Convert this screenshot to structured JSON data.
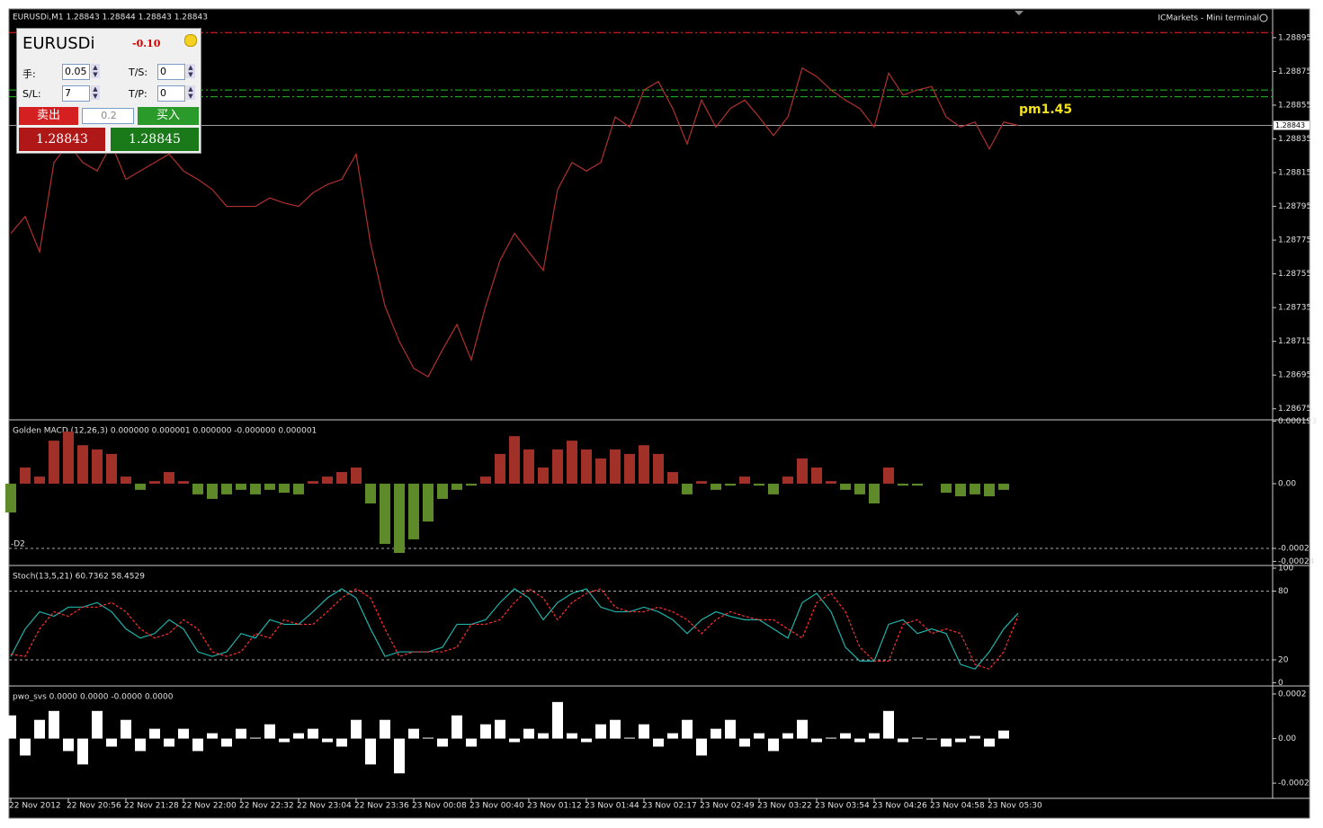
{
  "window": {
    "terminal_label": "ICMarkets - Mini terminal"
  },
  "mini_terminal": {
    "symbol": "EURUSDi",
    "profit": "-0.10",
    "lot_label": "手:",
    "lot": "0.05",
    "ts_label": "T/S:",
    "ts": "0",
    "sl_label": "S/L:",
    "sl": "7",
    "tp_label": "T/P:",
    "tp": "0",
    "sell_label": "卖出",
    "volume": "0.2",
    "buy_label": "买入",
    "bid": "1.28843",
    "ask": "1.28845"
  },
  "chart_data": [
    {
      "type": "line",
      "title": "EURUSDi,M1  1.28843 1.28844 1.28843 1.28843",
      "color": "#b03030",
      "categories": [
        "22 Nov 2012",
        null,
        null,
        null,
        "22 Nov 20:56",
        null,
        null,
        null,
        "22 Nov 21:28",
        null,
        null,
        null,
        "22 Nov 22:00",
        null,
        null,
        null,
        "22 Nov 22:32",
        null,
        null,
        null,
        "22 Nov 23:04",
        null,
        null,
        null,
        "22 Nov 23:36",
        null,
        null,
        null,
        "23 Nov 00:08",
        null,
        null,
        null,
        "23 Nov 00:40",
        null,
        null,
        null,
        "23 Nov 01:12",
        null,
        null,
        null,
        "23 Nov 01:44",
        null,
        null,
        null,
        "23 Nov 02:17",
        null,
        null,
        null,
        "23 Nov 02:49",
        null,
        null,
        null,
        "23 Nov 03:22",
        null,
        null,
        null,
        "23 Nov 03:54",
        null,
        null,
        null,
        "23 Nov 04:26",
        null,
        null,
        null,
        "23 Nov 04:58",
        null,
        null,
        null,
        "23 Nov 05:30",
        null,
        null
      ],
      "values": [
        1.28779,
        1.28789,
        1.28768,
        1.28821,
        1.28832,
        1.28821,
        1.28816,
        1.28832,
        1.28811,
        1.28816,
        1.28821,
        1.28826,
        1.28816,
        1.28811,
        1.28805,
        1.28795,
        1.28795,
        1.28795,
        1.288,
        1.28797,
        1.28795,
        1.28803,
        1.28808,
        1.28811,
        1.28826,
        1.28773,
        1.28736,
        1.28715,
        1.28699,
        1.28694,
        1.2871,
        1.28725,
        1.28704,
        1.28736,
        1.28763,
        1.28779,
        1.28768,
        1.28757,
        1.28805,
        1.28821,
        1.28816,
        1.28821,
        1.28848,
        1.28842,
        1.28864,
        1.28869,
        1.28853,
        1.28832,
        1.28858,
        1.28842,
        1.28853,
        1.28858,
        1.28848,
        1.28837,
        1.28848,
        1.28877,
        1.28872,
        1.28864,
        1.28858,
        1.28853,
        1.28842,
        1.28874,
        1.28861,
        1.28864,
        1.28866,
        1.28848,
        1.28842,
        1.28845,
        1.28829,
        1.28845,
        1.28843
      ],
      "ylim": [
        1.28669,
        1.28912
      ],
      "yticks": [
        1.28895,
        1.28875,
        1.28855,
        1.28835,
        1.28815,
        1.28795,
        1.28775,
        1.28755,
        1.28735,
        1.28715,
        1.28695,
        1.28675
      ],
      "hlines": [
        {
          "value": 1.28898,
          "color": "#ff2020"
        },
        {
          "value": 1.28864,
          "color": "#20c020"
        },
        {
          "value": 1.2886,
          "color": "#20c020"
        }
      ],
      "bid_line": 1.28843,
      "annotation": "pm1.45"
    },
    {
      "type": "bar",
      "title": "Golden MACD (12,26,3) 0.000000 0.000001 0.000000 -0.000000 0.000001",
      "color_up": "#a03028",
      "color_down": "#5f8a2a",
      "side_label": "-D2",
      "values": [
        -8.9e-05,
        5e-05,
        2.2e-05,
        0.000133,
        0.000161,
        0.000119,
        0.000106,
        9.2e-05,
        2.2e-05,
        -1.9e-05,
        8e-06,
        3.6e-05,
        8e-06,
        -3.3e-05,
        -4.7e-05,
        -3.3e-05,
        -1.9e-05,
        -3.3e-05,
        -1.9e-05,
        -2.8e-05,
        -3.3e-05,
        8e-06,
        2.2e-05,
        3.6e-05,
        5e-05,
        -6.1e-05,
        -0.000186,
        -0.000214,
        -0.000172,
        -0.000117,
        -4.7e-05,
        -1.9e-05,
        -6e-06,
        2.2e-05,
        9.2e-05,
        0.000147,
        0.000106,
        5e-05,
        0.000106,
        0.000133,
        0.000106,
        7.8e-05,
        0.000106,
        9.2e-05,
        0.000119,
        9.2e-05,
        3.6e-05,
        -3.3e-05,
        8e-06,
        -1.9e-05,
        -6e-06,
        2.2e-05,
        -6e-06,
        -3.3e-05,
        2.2e-05,
        7.8e-05,
        5e-05,
        8e-06,
        -1.9e-05,
        -3.3e-05,
        -6.1e-05,
        5e-05,
        -6e-06,
        -6e-06,
        0,
        -2.8e-05,
        -3.9e-05,
        -3.3e-05,
        -3.9e-05,
        -1.9e-05,
        0
      ],
      "ylim": [
        -0.00025,
        0.000189
      ],
      "yticks": [
        0.000193,
        {
          "value": 0,
          "label": "0.00"
        },
        -0.0002,
        -0.00024
      ],
      "levels": [
        -0.0002
      ]
    },
    {
      "type": "line",
      "title": "Stoch(13,5,21) 60.7362 58.4529",
      "series": [
        {
          "color": "#20b2aa",
          "dashed": false,
          "values": [
            23,
            47,
            62,
            58,
            66,
            66,
            70,
            62,
            47,
            39,
            43,
            55,
            47,
            27,
            23,
            27,
            43,
            39,
            55,
            51,
            51,
            62,
            74,
            82,
            74,
            47,
            23,
            27,
            27,
            27,
            31,
            51,
            51,
            55,
            70,
            82,
            74,
            55,
            70,
            78,
            82,
            66,
            62,
            62,
            66,
            62,
            55,
            43,
            55,
            62,
            58,
            55,
            55,
            47,
            39,
            70,
            78,
            62,
            31,
            19,
            19,
            51,
            55,
            43,
            47,
            43,
            16,
            12,
            27,
            47,
            60.7362
          ]
        },
        {
          "color": "#ff3030",
          "dashed": true,
          "values": [
            25,
            23,
            47,
            62,
            58,
            66,
            66,
            70,
            62,
            47,
            39,
            43,
            55,
            47,
            27,
            23,
            27,
            43,
            39,
            55,
            51,
            51,
            62,
            74,
            82,
            74,
            47,
            23,
            27,
            27,
            27,
            31,
            51,
            51,
            55,
            70,
            82,
            74,
            55,
            70,
            78,
            82,
            66,
            62,
            62,
            66,
            62,
            55,
            43,
            55,
            62,
            58,
            55,
            55,
            47,
            39,
            70,
            78,
            62,
            31,
            19,
            19,
            51,
            55,
            43,
            47,
            43,
            16,
            12,
            27,
            58.4529
          ]
        }
      ],
      "ylim": [
        -2,
        100
      ],
      "yticks": [
        100,
        80,
        20,
        0
      ],
      "levels": [
        80,
        20
      ]
    },
    {
      "type": "bar",
      "title": "pwo_svs 0.0000 0.0000 -0.0000 0.0000",
      "color_up": "#ffffff",
      "color_down": "#ffffff",
      "values": [
        0.000104,
        -7.6e-05,
        8.4e-05,
        0.000124,
        -5.6e-05,
        -0.000116,
        0.000124,
        -3.6e-05,
        8.4e-05,
        -5.6e-05,
        4.4e-05,
        -3.6e-05,
        4.4e-05,
        -5.6e-05,
        2.4e-05,
        -3.6e-05,
        4.4e-05,
        4e-06,
        6.4e-05,
        -1.6e-05,
        2.4e-05,
        4.4e-05,
        -1.6e-05,
        -3.6e-05,
        8.4e-05,
        -0.000116,
        8.4e-05,
        -0.000156,
        4.4e-05,
        4e-06,
        -3.6e-05,
        0.000104,
        -3.6e-05,
        6.4e-05,
        8.4e-05,
        -1.6e-05,
        4.4e-05,
        2.4e-05,
        0.000164,
        2.4e-05,
        -1.6e-05,
        6.4e-05,
        8.4e-05,
        4e-06,
        6.4e-05,
        -3.6e-05,
        2.4e-05,
        8.4e-05,
        -7.6e-05,
        4.4e-05,
        8.4e-05,
        -3.6e-05,
        2.4e-05,
        -5.6e-05,
        2.4e-05,
        8.4e-05,
        -1.6e-05,
        4e-06,
        2.4e-05,
        -1.6e-05,
        2.4e-05,
        0.000124,
        -1.6e-05,
        4e-06,
        -4e-06,
        -3.6e-05,
        -1.6e-05,
        1.2e-05,
        -3.6e-05,
        3.6e-05,
        0
      ],
      "ylim": [
        -0.000264,
        0.000224
      ],
      "yticks": [
        0.0002,
        {
          "value": 0,
          "label": "0.00"
        },
        -0.0002
      ]
    }
  ]
}
